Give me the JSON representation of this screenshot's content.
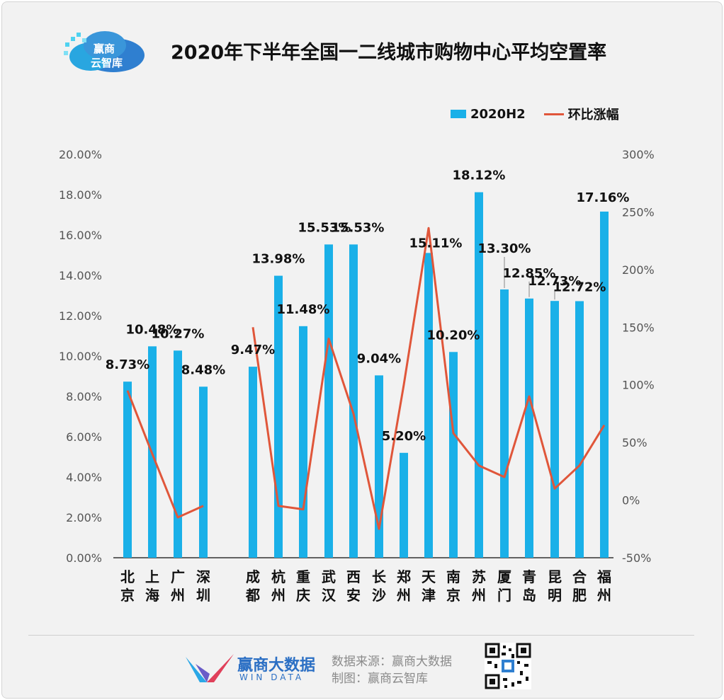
{
  "logo": {
    "text": "赢商\n云智库",
    "line1": "赢商",
    "line2": "云智库"
  },
  "title": "2020年下半年全国一二线城市购物中心平均空置率",
  "legend": {
    "bar_label": "2020H2",
    "line_label": "环比涨幅"
  },
  "colors": {
    "bar": "#1ab0e8",
    "line": "#e0563a",
    "background": "#f2f2f2"
  },
  "chart_data": {
    "type": "bar",
    "title": "2020年下半年全国一二线城市购物中心平均空置率",
    "categories": [
      "北京",
      "上海",
      "广州",
      "深圳",
      "成都",
      "杭州",
      "重庆",
      "武汉",
      "西安",
      "长沙",
      "郑州",
      "天津",
      "南京",
      "苏州",
      "厦门",
      "青岛",
      "昆明",
      "合肥",
      "福州"
    ],
    "category_labels": [
      [
        "北",
        "京"
      ],
      [
        "上",
        "海"
      ],
      [
        "广",
        "州"
      ],
      [
        "深",
        "圳"
      ],
      [
        "成",
        "都"
      ],
      [
        "杭",
        "州"
      ],
      [
        "重",
        "庆"
      ],
      [
        "武",
        "汉"
      ],
      [
        "西",
        "安"
      ],
      [
        "长",
        "沙"
      ],
      [
        "郑",
        "州"
      ],
      [
        "天",
        "津"
      ],
      [
        "南",
        "京"
      ],
      [
        "苏",
        "州"
      ],
      [
        "厦",
        "门"
      ],
      [
        "青",
        "岛"
      ],
      [
        "昆",
        "明"
      ],
      [
        "合",
        "肥"
      ],
      [
        "福",
        "州"
      ]
    ],
    "series": [
      {
        "name": "2020H2",
        "type": "bar",
        "axis": "left",
        "values": [
          8.73,
          10.48,
          10.27,
          8.48,
          9.47,
          13.98,
          11.48,
          15.53,
          15.53,
          9.04,
          5.2,
          15.11,
          10.2,
          18.12,
          13.3,
          12.85,
          12.73,
          12.72,
          17.16
        ],
        "labels": [
          "8.73%",
          "10.48%",
          "10.27%",
          "8.48%",
          "9.47%",
          "13.98%",
          "11.48%",
          "15.53%",
          "15.53%",
          "9.04%",
          "5.20%",
          "15.11%",
          "10.20%",
          "18.12%",
          "13.30%",
          "12.85%",
          "12.73%",
          "12.72%",
          "17.16%"
        ]
      },
      {
        "name": "环比涨幅",
        "type": "line",
        "axis": "right",
        "segments": [
          {
            "categories": [
              "北京",
              "上海",
              "广州",
              "深圳"
            ],
            "values": [
              95,
              40,
              -15,
              -5
            ]
          },
          {
            "categories": [
              "成都",
              "杭州",
              "重庆",
              "武汉",
              "西安",
              "长沙",
              "郑州",
              "天津",
              "南京",
              "苏州",
              "厦门",
              "青岛",
              "昆明",
              "合肥",
              "福州"
            ],
            "values": [
              150,
              -5,
              -8,
              140,
              75,
              -25,
              100,
              236,
              58,
              30,
              20,
              90,
              10,
              30,
              65
            ]
          }
        ]
      }
    ],
    "y_left": {
      "min": 0,
      "max": 20,
      "step": 2,
      "ticks": [
        "0.00%",
        "2.00%",
        "4.00%",
        "6.00%",
        "8.00%",
        "10.00%",
        "12.00%",
        "14.00%",
        "16.00%",
        "18.00%",
        "20.00%"
      ]
    },
    "y_right": {
      "min": -50,
      "max": 300,
      "step": 50,
      "ticks": [
        "-50%",
        "0%",
        "50%",
        "100%",
        "150%",
        "200%",
        "250%",
        "300%"
      ]
    },
    "grid": false,
    "legend_position": "top-right"
  },
  "footer": {
    "brand_cn": "赢商大数据",
    "brand_en": "WIN DATA",
    "source": "数据来源：赢商大数据",
    "made_by": "制图：赢商云智库"
  }
}
